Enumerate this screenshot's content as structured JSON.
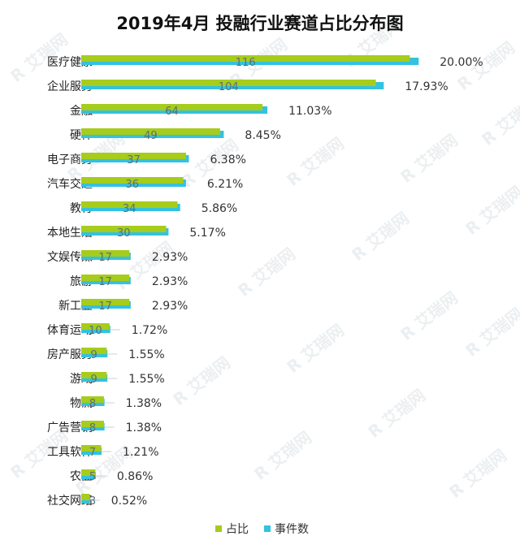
{
  "chart_data": {
    "type": "bar",
    "orientation": "horizontal",
    "title": "2019年4月 投融行业赛道占比分布图",
    "categories": [
      "医疗健康",
      "企业服务",
      "金融",
      "硬件",
      "电子商务",
      "汽车交通",
      "教育",
      "本地生活",
      "文娱传媒",
      "旅游",
      "新工业",
      "体育运动",
      "房产服务",
      "游戏",
      "物流",
      "广告营销",
      "工具软件",
      "农业",
      "社交网络"
    ],
    "series": [
      {
        "name": "占比",
        "color": "#a6cc1c",
        "values": [
          20.0,
          17.93,
          11.03,
          8.45,
          6.38,
          6.21,
          5.86,
          5.17,
          2.93,
          2.93,
          2.93,
          1.72,
          1.55,
          1.55,
          1.38,
          1.38,
          1.21,
          0.86,
          0.52
        ]
      },
      {
        "name": "事件数",
        "color": "#33c2e0",
        "values": [
          116,
          104,
          64,
          49,
          37,
          36,
          34,
          30,
          17,
          17,
          17,
          10,
          9,
          9,
          8,
          8,
          7,
          5,
          3
        ]
      }
    ],
    "count_labels": [
      "116",
      "104",
      "64",
      "49",
      "37",
      "36",
      "34",
      "30",
      "17",
      "17",
      "17",
      "10",
      "9",
      "9",
      "8",
      "8",
      "7",
      "5",
      "3"
    ],
    "pct_labels": [
      "20.00%",
      "17.93%",
      "11.03%",
      "8.45%",
      "6.38%",
      "6.21%",
      "5.86%",
      "5.17%",
      "2.93%",
      "2.93%",
      "2.93%",
      "1.72%",
      "1.55%",
      "1.55%",
      "1.38%",
      "1.38%",
      "1.21%",
      "0.86%",
      "0.52%"
    ],
    "legend": {
      "position": "bottom",
      "items": [
        "占比",
        "事件数"
      ]
    },
    "watermark": "艾瑞网"
  }
}
